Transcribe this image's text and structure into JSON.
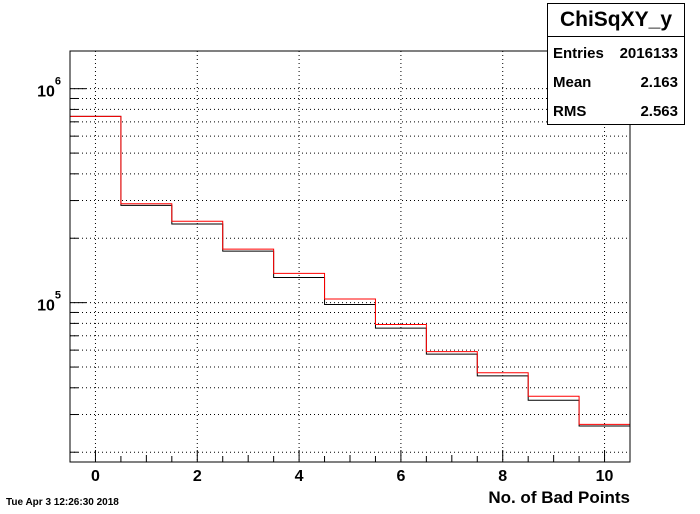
{
  "chart_data": {
    "type": "step",
    "title": "",
    "xlabel": "No. of Bad Points",
    "ylabel": "",
    "xlim": [
      -0.5,
      10.5
    ],
    "ylim": [
      18000,
      1500000
    ],
    "y_scale": "log",
    "grid": true,
    "x_ticks": [
      0,
      2,
      4,
      6,
      8,
      10
    ],
    "y_ticks": [
      {
        "value": 100000,
        "mantissa": "10",
        "exponent": "5"
      },
      {
        "value": 1000000,
        "mantissa": "10",
        "exponent": "6"
      }
    ],
    "bin_edges": [
      -0.5,
      0.5,
      1.5,
      2.5,
      3.5,
      4.5,
      5.5,
      6.5,
      7.5,
      8.5,
      9.5,
      10.5
    ],
    "series": [
      {
        "color": "#000000",
        "values": [
          742000,
          285000,
          233000,
          174000,
          131000,
          98000,
          76000,
          57500,
          45500,
          35000,
          26500
        ]
      },
      {
        "color": "#ff0000",
        "values": [
          742000,
          290000,
          240000,
          178000,
          137000,
          104000,
          79000,
          59000,
          47000,
          36500,
          27000
        ]
      }
    ]
  },
  "stats": {
    "title": "ChiSqXY_y",
    "rows": [
      {
        "label": "Entries",
        "value": "2016133"
      },
      {
        "label": "Mean",
        "value": "2.163"
      },
      {
        "label": "RMS",
        "value": "2.563"
      }
    ]
  },
  "timestamp": "Tue Apr  3 12:26:30 2018"
}
